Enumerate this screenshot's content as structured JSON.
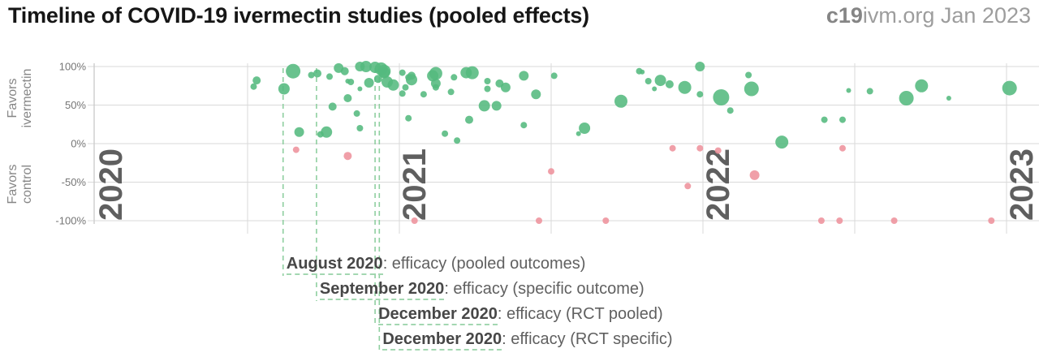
{
  "header": {
    "title": "Timeline of COVID-19 ivermectin studies (pooled effects)",
    "brand_bold": "c19",
    "brand_rest": "ivm.org Jan 2023"
  },
  "chart_data": {
    "type": "scatter",
    "title": "Timeline of COVID-19 ivermectin studies (pooled effects)",
    "x_axis": {
      "year_labels": [
        "2020",
        "2021",
        "2022",
        "2023"
      ],
      "gridlines": [
        2020.5,
        2021,
        2021.5,
        2022,
        2022.5,
        2023
      ],
      "range": [
        2020.0,
        2023.12
      ]
    },
    "y_axis": {
      "ticks": [
        {
          "label": "100%",
          "value": 100
        },
        {
          "label": "50%",
          "value": 50
        },
        {
          "label": "0%",
          "value": 0
        },
        {
          "label": "-50%",
          "value": -50
        },
        {
          "label": "-100%",
          "value": -100
        }
      ],
      "range": [
        -100,
        100
      ],
      "label_top_lines": [
        "Favors",
        "ivermectin"
      ],
      "label_bottom_lines": [
        "Favors",
        "control"
      ]
    },
    "colors": {
      "green": "#54b97e",
      "pink": "#ee929c",
      "grid": "#dadada",
      "axis": "#c9c9c9",
      "tick_text": "#757575",
      "year_text": "#5f5f5f",
      "favors_text": "#868686",
      "dashed": "#8fcfa0"
    },
    "series": [
      {
        "name": "favors-ivermectin",
        "color": "#54b97e",
        "points": [
          [
            2020.52,
            74,
            4
          ],
          [
            2020.53,
            82,
            5
          ],
          [
            2020.65,
            94,
            9
          ],
          [
            2020.62,
            71,
            7
          ],
          [
            2020.71,
            89,
            4
          ],
          [
            2020.73,
            91,
            5
          ],
          [
            2020.77,
            87,
            4
          ],
          [
            2020.8,
            98,
            6
          ],
          [
            2020.82,
            94,
            5
          ],
          [
            2020.84,
            80,
            4
          ],
          [
            2020.87,
            100,
            6
          ],
          [
            2020.89,
            100,
            7
          ],
          [
            2020.92,
            99,
            7
          ],
          [
            2020.94,
            97,
            8
          ],
          [
            2020.95,
            92,
            7
          ],
          [
            2020.9,
            79,
            6
          ],
          [
            2020.93,
            84,
            5
          ],
          [
            2020.98,
            76,
            7
          ],
          [
            2020.83,
            81,
            3
          ],
          [
            2020.87,
            71,
            3
          ],
          [
            2020.83,
            59,
            5
          ],
          [
            2020.78,
            48,
            5
          ],
          [
            2020.86,
            39,
            4
          ],
          [
            2020.76,
            15,
            7
          ],
          [
            2020.74,
            12,
            4
          ],
          [
            2020.67,
            15,
            6
          ],
          [
            2020.87,
            20,
            4
          ],
          [
            2020.95,
            94,
            8
          ],
          [
            2020.96,
            80,
            7
          ],
          [
            2021.01,
            92,
            4
          ],
          [
            2021.03,
            86,
            4
          ],
          [
            2021.02,
            73,
            4
          ],
          [
            2021.04,
            88,
            5
          ],
          [
            2021.04,
            83,
            7
          ],
          [
            2021.01,
            65,
            4
          ],
          [
            2021.08,
            64,
            4
          ],
          [
            2021.11,
            88,
            7
          ],
          [
            2021.12,
            91,
            8
          ],
          [
            2021.12,
            78,
            6
          ],
          [
            2021.12,
            73,
            4
          ],
          [
            2021.18,
            86,
            4
          ],
          [
            2021.17,
            67,
            4
          ],
          [
            2021.22,
            92,
            7
          ],
          [
            2021.24,
            92,
            8
          ],
          [
            2021.29,
            81,
            4
          ],
          [
            2021.29,
            71,
            4
          ],
          [
            2021.33,
            78,
            5
          ],
          [
            2021.35,
            73,
            6
          ],
          [
            2021.28,
            49,
            7
          ],
          [
            2021.32,
            49,
            6
          ],
          [
            2021.41,
            88,
            6
          ],
          [
            2021.45,
            64,
            6
          ],
          [
            2021.51,
            88,
            4
          ],
          [
            2021.03,
            33,
            4
          ],
          [
            2021.23,
            31,
            5
          ],
          [
            2021.41,
            24,
            4
          ],
          [
            2021.15,
            13,
            4
          ],
          [
            2021.19,
            4,
            4
          ],
          [
            2021.79,
            94,
            4
          ],
          [
            2021.82,
            81,
            4
          ],
          [
            2021.8,
            93,
            3
          ],
          [
            2021.86,
            82,
            7
          ],
          [
            2021.89,
            77,
            5
          ],
          [
            2021.84,
            71,
            3
          ],
          [
            2021.94,
            73,
            8
          ],
          [
            2021.99,
            100,
            6
          ],
          [
            2021.99,
            64,
            4
          ],
          [
            2022.06,
            60,
            10
          ],
          [
            2021.73,
            55,
            8
          ],
          [
            2021.61,
            20,
            7
          ],
          [
            2021.59,
            13,
            3
          ],
          [
            2022.15,
            89,
            4
          ],
          [
            2022.16,
            71,
            9
          ],
          [
            2022.09,
            43,
            4
          ],
          [
            2022.26,
            2,
            8
          ],
          [
            2022.4,
            31,
            4
          ],
          [
            2022.46,
            31,
            4
          ],
          [
            2022.48,
            69,
            3
          ],
          [
            2022.55,
            68,
            4
          ],
          [
            2022.67,
            59,
            9
          ],
          [
            2022.72,
            75,
            8
          ],
          [
            2022.81,
            59,
            3
          ],
          [
            2023.01,
            72,
            9
          ]
        ]
      },
      {
        "name": "favors-control",
        "color": "#ee929c",
        "points": [
          [
            2020.66,
            -8,
            4
          ],
          [
            2020.83,
            -16,
            5
          ],
          [
            2021.05,
            -100,
            4
          ],
          [
            2021.46,
            -100,
            4
          ],
          [
            2021.5,
            -36,
            4
          ],
          [
            2021.68,
            -100,
            4
          ],
          [
            2021.9,
            -6,
            4
          ],
          [
            2021.99,
            -6,
            4
          ],
          [
            2022.05,
            -9,
            4
          ],
          [
            2021.95,
            -55,
            4
          ],
          [
            2022.17,
            -41,
            6
          ],
          [
            2022.46,
            -6,
            4
          ],
          [
            2022.39,
            -100,
            4
          ],
          [
            2022.45,
            -100,
            4
          ],
          [
            2022.63,
            -100,
            4
          ],
          [
            2022.95,
            -100,
            4
          ]
        ]
      }
    ],
    "milestones": [
      {
        "x": 2020.617,
        "label_bold": "August 2020",
        "label_rest": ": efficacy (pooled outcomes)"
      },
      {
        "x": 2020.727,
        "label_bold": "September 2020",
        "label_rest": ": efficacy (specific outcome)"
      },
      {
        "x": 2020.92,
        "label_bold": "December 2020",
        "label_rest": ": efficacy (RCT pooled)"
      },
      {
        "x": 2020.934,
        "label_bold": "December 2020",
        "label_rest": ": efficacy (RCT specific)"
      }
    ]
  }
}
